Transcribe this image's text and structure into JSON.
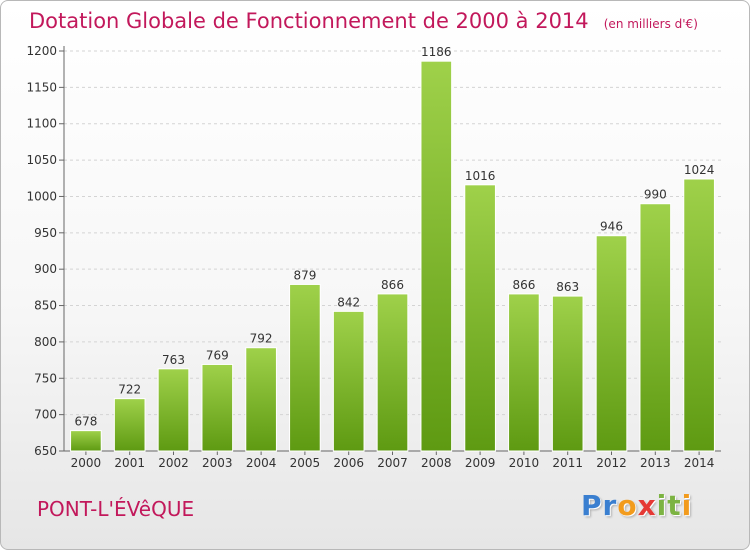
{
  "chart_data": {
    "type": "bar",
    "title": "Dotation Globale de Fonctionnement de 2000 à 2014",
    "subtitle": "(en milliers d'€)",
    "categories": [
      "2000",
      "2001",
      "2002",
      "2003",
      "2004",
      "2005",
      "2006",
      "2007",
      "2008",
      "2009",
      "2010",
      "2011",
      "2012",
      "2013",
      "2014"
    ],
    "values": [
      678,
      722,
      763,
      769,
      792,
      879,
      842,
      866,
      1186,
      1016,
      866,
      863,
      946,
      990,
      1024
    ],
    "ylim": [
      650,
      1200
    ],
    "yticks": [
      650,
      700,
      750,
      800,
      850,
      900,
      950,
      1000,
      1050,
      1100,
      1150,
      1200
    ],
    "grid": true,
    "bar_color_top": "#9fd14a",
    "bar_color_bottom": "#5e9a12"
  },
  "footer": {
    "commune": "PONT-L'ÉVêQUE",
    "brand_letters": [
      {
        "ch": "P",
        "color": "#3a7fd0"
      },
      {
        "ch": "r",
        "color": "#3a7fd0"
      },
      {
        "ch": "o",
        "color": "#f29b1d"
      },
      {
        "ch": "x",
        "color": "#e53935"
      },
      {
        "ch": "i",
        "color": "#7cb342"
      },
      {
        "ch": "t",
        "color": "#7cb342"
      },
      {
        "ch": "i",
        "color": "#f29b1d"
      }
    ]
  }
}
